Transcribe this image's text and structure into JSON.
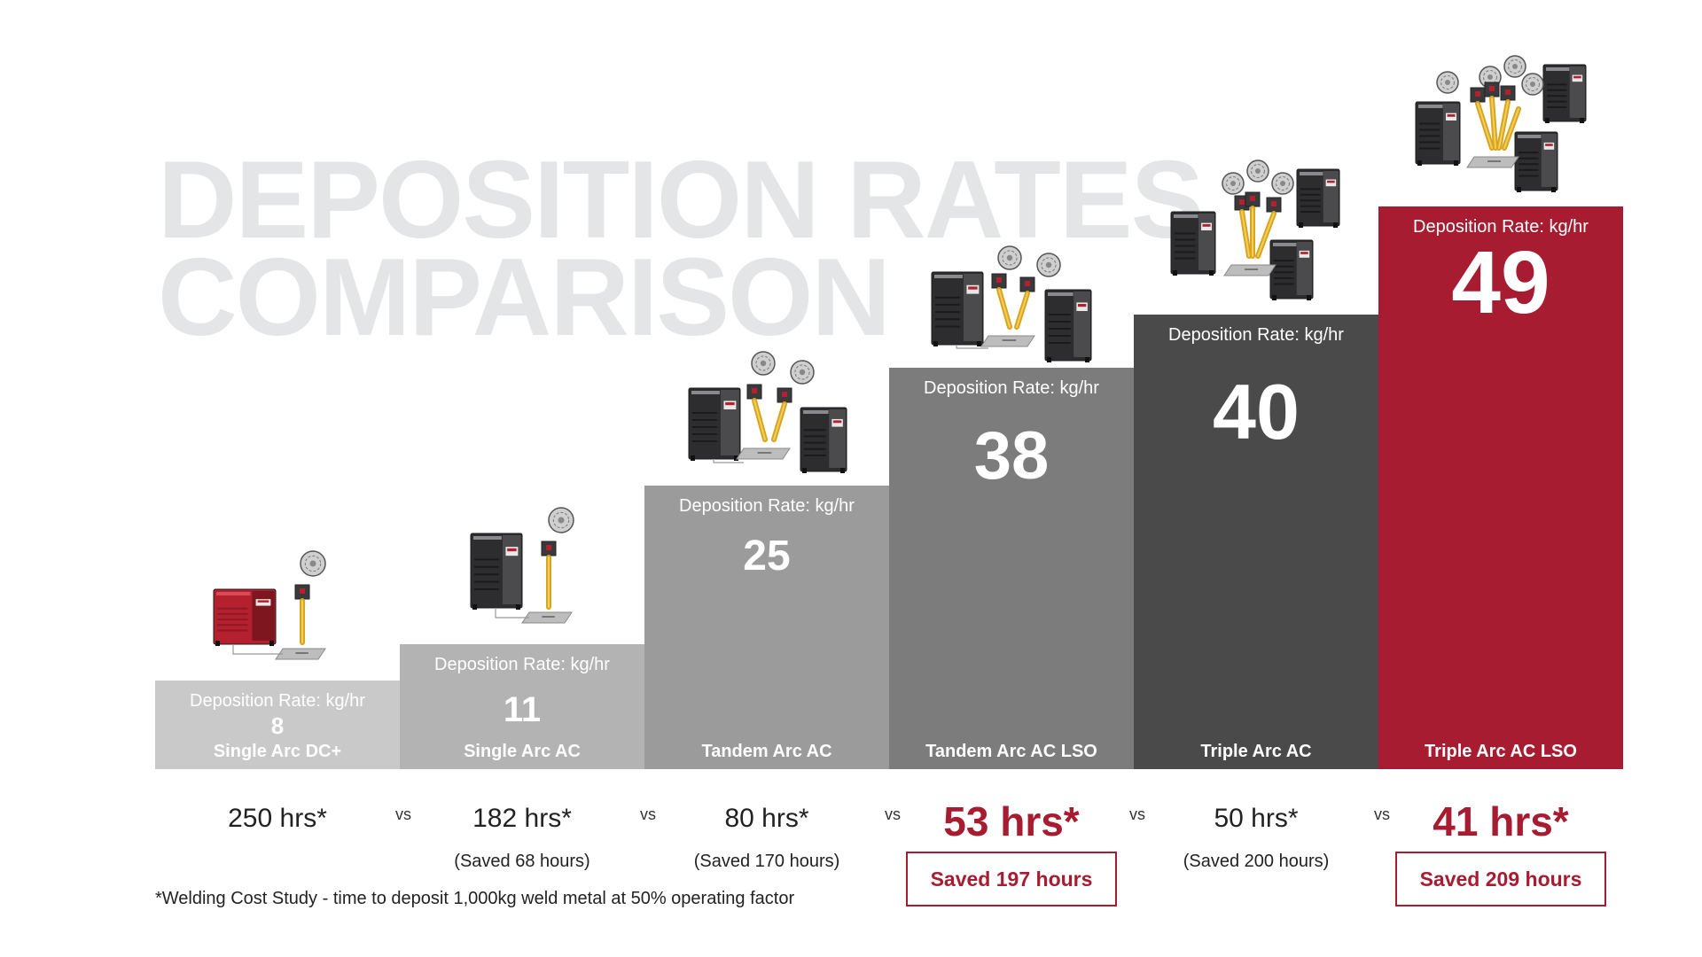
{
  "title_line1": "DEPOSITION RATES",
  "title_line2": "COMPARISON",
  "rate_label": "Deposition Rate: kg/hr",
  "vs_label": "vs",
  "footnote": "*Welding Cost Study - time to deposit 1,000kg weld metal at 50% operating factor",
  "colors": {
    "title": "#e4e5e6",
    "bars": [
      "#c9c9c9",
      "#b3b3b3",
      "#9b9b9b",
      "#7c7c7c",
      "#4a4a4b",
      "#a71c30"
    ],
    "highlight": "#a71c30"
  },
  "chart_data": {
    "type": "bar",
    "title": "DEPOSITION RATES COMPARISON",
    "categories": [
      "Single Arc DC+",
      "Single Arc AC",
      "Tandem Arc AC",
      "Tandem Arc AC LSO",
      "Triple Arc AC",
      "Triple Arc AC LSO"
    ],
    "series": [
      {
        "name": "Deposition Rate: kg/hr",
        "values": [
          8,
          11,
          25,
          38,
          40,
          49
        ]
      }
    ],
    "hours_labels": [
      "250 hrs*",
      "182 hrs*",
      "80 hrs*",
      "53 hrs*",
      "50 hrs*",
      "41 hrs*"
    ],
    "saved_labels": [
      "",
      "(Saved 68 hours)",
      "(Saved 170 hours)",
      "Saved 197 hours",
      "(Saved 200 hours)",
      "Saved 209 hours"
    ],
    "highlighted": [
      false,
      false,
      false,
      true,
      false,
      true
    ],
    "icon_names": [
      "single-arc-dc-welder-icon",
      "single-arc-ac-welder-icon",
      "tandem-arc-welder-icon",
      "tandem-arc-lso-welder-icon",
      "triple-arc-welder-icon",
      "triple-arc-lso-welder-icon"
    ]
  }
}
